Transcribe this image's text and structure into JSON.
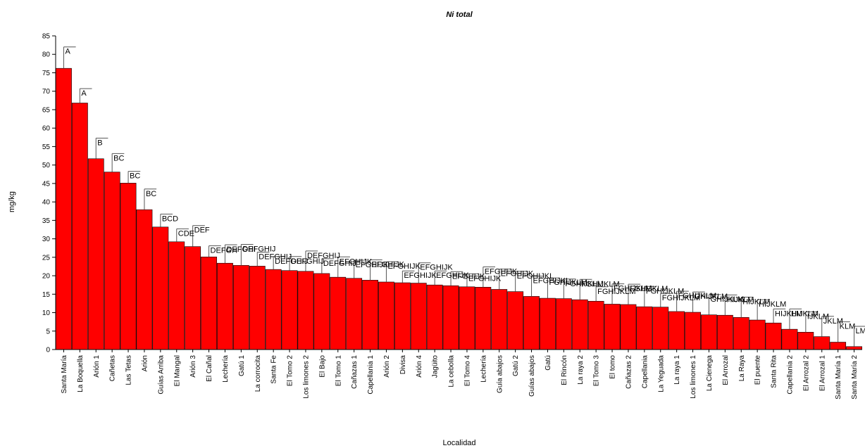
{
  "chart_data": {
    "type": "bar",
    "title": "Ni total",
    "xlabel": "Localidad",
    "ylabel": "mg/kg",
    "ylim": [
      0,
      85
    ],
    "yticks": [
      0,
      5,
      10,
      15,
      20,
      25,
      30,
      35,
      40,
      45,
      50,
      55,
      60,
      65,
      70,
      75,
      80,
      85
    ],
    "grid": false,
    "error_bars": true,
    "bar_color": "#ff0000",
    "bar_edge_color": "#000000",
    "categories": [
      "Santa María",
      "La Boquella",
      "Arión 1",
      "Cañetas",
      "Las Tetas",
      "Arión",
      "Guías Arriba",
      "El Mangal",
      "Arión 3",
      "El Cañal",
      "Lechería",
      "Gatú 1",
      "La corrocita",
      "Santa Fe",
      "El Tomo 2",
      "Los limones 2",
      "El Bajo",
      "El Tomo 1",
      "Cañazas 1",
      "Capellania 1",
      "Arión 2",
      "Divisa",
      "Arión 4",
      "Jagüito",
      "La cebolla",
      "El Tomo 4",
      "Lechería",
      "Guía abajos",
      "Gatú 2",
      "Guías abajos",
      "Gatú",
      "El Rincón",
      "La raya 2",
      "El Tomo 3",
      "El tomo",
      "Cañazas 2",
      "Capellania",
      "La Yeguada",
      "La raya 1",
      "Los limones 1",
      "La Cienega",
      "El Arrozal",
      "La Raya",
      "El puente",
      "Santa Rita",
      "Capellania 2",
      "El Arrozal 2",
      "El Arrozal 1",
      "Santa María 1",
      "Santa María 2"
    ],
    "values": [
      76.2,
      66.8,
      51.7,
      48.1,
      45.1,
      37.9,
      33.2,
      29.2,
      27.9,
      25.1,
      23.4,
      22.8,
      22.6,
      21.7,
      21.4,
      21.2,
      20.6,
      19.6,
      19.3,
      18.8,
      18.3,
      18.1,
      18.0,
      17.5,
      17.3,
      17.0,
      16.9,
      16.3,
      15.7,
      14.4,
      13.9,
      13.8,
      13.5,
      13.1,
      12.3,
      12.2,
      11.6,
      11.5,
      10.3,
      10.1,
      9.4,
      9.3,
      8.7,
      8.0,
      7.2,
      5.5,
      4.7,
      3.5,
      2.0,
      0.8
    ],
    "errors": [
      5.8,
      3.9,
      5.6,
      5.0,
      3.2,
      5.6,
      3.5,
      3.5,
      5.7,
      3.0,
      5.0,
      5.7,
      3.8,
      3.5,
      3.8,
      5.5,
      4.0,
      5.5,
      4.9,
      5.5,
      5.5,
      3.2,
      5.5,
      3.8,
      3.8,
      3.5,
      5.5,
      5.5,
      5.5,
      5.5,
      5.5,
      5.3,
      5.5,
      3.9,
      5.5,
      5.5,
      5.5,
      3.7,
      5.5,
      5.5,
      5.5,
      5.5,
      5.5,
      5.5,
      3.8,
      5.5,
      5.5,
      5.5,
      5.5,
      5.5
    ],
    "group_labels": [
      "A",
      "A",
      "B",
      "BC",
      "BC",
      "BC",
      "BCD",
      "CDE",
      "DEF",
      "DEFGH",
      "DEFGHI",
      "DEFGHIJ",
      "DEFGHIJ",
      "DEFGHIJ",
      "DEFGHIJ",
      "DEFGHIJ",
      "DEFGHIJ",
      "EFGHIJK",
      "EFGHIJK",
      "EFGHIJK",
      "EFGHIJK",
      "EFGHIJK",
      "EFGHIJK",
      "EFGHIJK",
      "EFGHIJK",
      "EFGHIJK",
      "EFGHIJK",
      "EFGHIJK",
      "EFGHIJKL",
      "EFGHIJKL",
      "FGHIJKLM",
      "FGHIJKLM",
      "FGHIJKLM",
      "FGHIJKLM",
      "FGHIJKLM",
      "FGHIJKLM",
      "FGHIJKLM",
      "FGHIJKLM",
      "FGHIJKLM",
      "GHIJKLM",
      "GHIJKLM",
      "HIJKLM",
      "HIJKLM",
      "HIJKLM",
      "HIJKLM",
      "HIJKLM",
      "IJKLM",
      "JKLM",
      "KLM",
      "LM"
    ]
  }
}
